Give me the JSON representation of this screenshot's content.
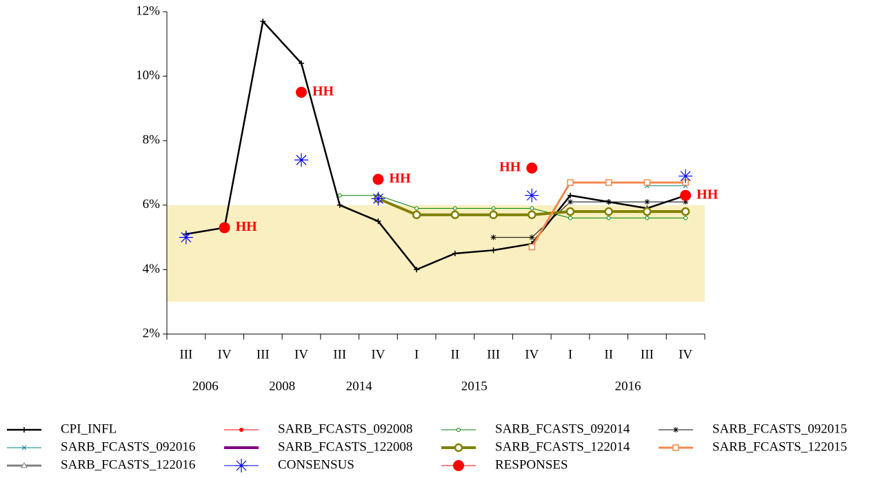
{
  "chart_data": {
    "type": "line",
    "categories": [
      "III",
      "IV",
      "III",
      "IV",
      "III",
      "IV",
      "I",
      "II",
      "III",
      "IV",
      "I",
      "II",
      "III",
      "IV"
    ],
    "groups": [
      {
        "label": "2006",
        "span": 2
      },
      {
        "label": "2008",
        "span": 2
      },
      {
        "label": "2014",
        "span": 2
      },
      {
        "label": "2015",
        "span": 4
      },
      {
        "label": "2016",
        "span": 4
      }
    ],
    "ylim": [
      2,
      12
    ],
    "yticks": [
      {
        "value": 2,
        "label": "2%"
      },
      {
        "value": 4,
        "label": "4%"
      },
      {
        "value": 6,
        "label": "6%"
      },
      {
        "value": 8,
        "label": "8%"
      },
      {
        "value": 10,
        "label": "10%"
      },
      {
        "value": 12,
        "label": "12%"
      }
    ],
    "band": [
      3,
      6
    ],
    "band_color": "#faefc0",
    "series": [
      {
        "name": "CPI_INFL",
        "color": "#000000",
        "line_width": 2.5,
        "marker": "plus",
        "values": [
          5.1,
          5.3,
          11.7,
          10.4,
          6.0,
          5.5,
          4.0,
          4.5,
          4.6,
          4.8,
          6.3,
          6.1,
          5.9,
          6.3
        ]
      },
      {
        "name": "SARB_FCASTS_092008",
        "color": "#ff0000",
        "line_width": 1,
        "marker": "dot",
        "values": [
          null,
          null,
          null,
          null,
          null,
          null,
          null,
          null,
          null,
          null,
          null,
          null,
          null,
          null
        ]
      },
      {
        "name": "SARB_FCASTS_092014",
        "color": "#008000",
        "line_width": 1,
        "marker": "circle-small",
        "values": [
          null,
          null,
          null,
          null,
          6.3,
          6.3,
          5.9,
          5.9,
          5.9,
          5.9,
          5.6,
          5.6,
          5.6,
          5.6
        ]
      },
      {
        "name": "SARB_FCASTS_092015",
        "color": "#000000",
        "line_width": 1,
        "marker": "asterisk",
        "values": [
          null,
          null,
          null,
          null,
          null,
          null,
          null,
          null,
          5.0,
          5.0,
          6.1,
          6.1,
          6.1,
          6.1
        ]
      },
      {
        "name": "SARB_FCASTS_092016",
        "color": "#008080",
        "line_width": 1,
        "marker": "x",
        "values": [
          null,
          null,
          null,
          null,
          null,
          null,
          null,
          null,
          null,
          null,
          null,
          null,
          6.6,
          6.6
        ]
      },
      {
        "name": "SARB_FCASTS_122008",
        "color": "#800080",
        "line_width": 4,
        "marker": "none",
        "values": [
          null,
          null,
          null,
          null,
          null,
          null,
          null,
          null,
          null,
          null,
          null,
          null,
          null,
          null
        ]
      },
      {
        "name": "SARB_FCASTS_122014",
        "color": "#808000",
        "line_width": 4,
        "marker": "circle-open",
        "values": [
          null,
          null,
          null,
          null,
          null,
          6.2,
          5.7,
          5.7,
          5.7,
          5.7,
          5.8,
          5.8,
          5.8,
          5.8
        ]
      },
      {
        "name": "SARB_FCASTS_122015",
        "color": "#f4884c",
        "line_width": 3,
        "marker": "square-open",
        "values": [
          null,
          null,
          null,
          null,
          null,
          null,
          null,
          null,
          null,
          4.7,
          6.7,
          6.7,
          6.7,
          6.7
        ]
      },
      {
        "name": "SARB_FCASTS_122016",
        "color": "#808080",
        "line_width": 3,
        "marker": "triangle-open",
        "values": [
          null,
          null,
          null,
          null,
          null,
          null,
          null,
          null,
          null,
          null,
          null,
          null,
          null,
          null
        ]
      },
      {
        "name": "CONSENSUS",
        "color": "#0000ff",
        "line_width": 0,
        "marker": "star",
        "values": [
          5.0,
          null,
          null,
          7.4,
          null,
          6.2,
          null,
          null,
          null,
          6.3,
          null,
          null,
          null,
          6.9
        ]
      },
      {
        "name": "RESPONSES",
        "color": "#ff0000",
        "line_width": 0,
        "marker": "big-dot",
        "values": [
          null,
          5.3,
          null,
          9.5,
          null,
          6.8,
          null,
          null,
          null,
          7.15,
          null,
          null,
          null,
          6.3
        ],
        "labels": [
          null,
          "HH",
          null,
          "HH",
          null,
          "HH",
          null,
          null,
          null,
          "HH",
          null,
          null,
          null,
          "HH"
        ]
      }
    ]
  }
}
